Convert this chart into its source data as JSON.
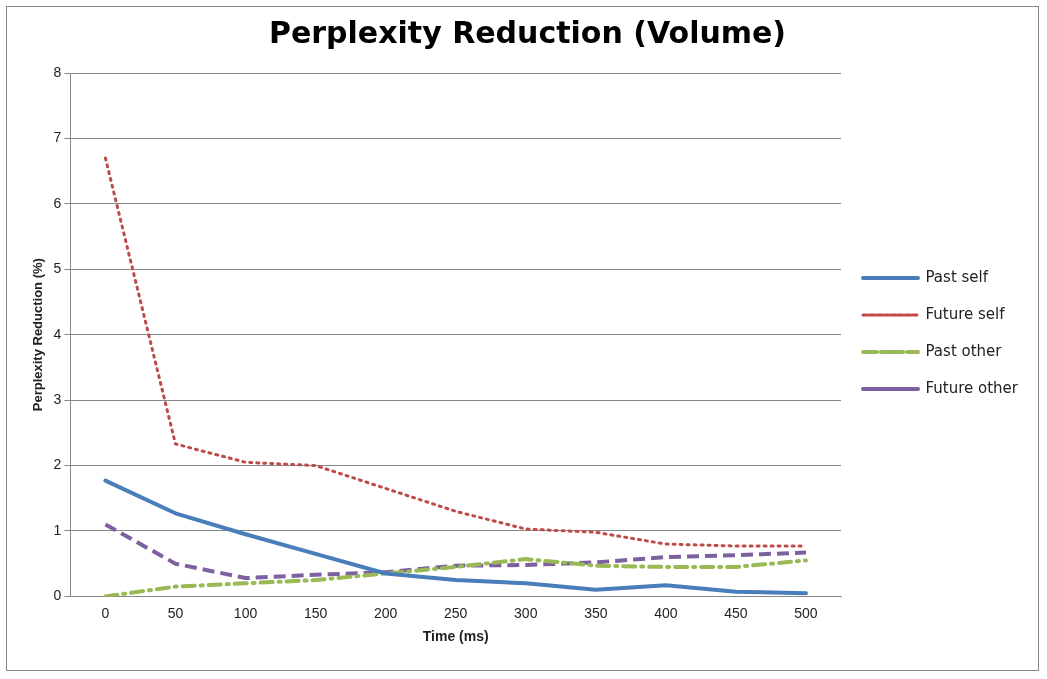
{
  "chart_data": {
    "type": "line",
    "title": "Perplexity Reduction (Volume)",
    "xlabel": "Time (ms)",
    "ylabel": "Perplexity Reduction (%)",
    "categories": [
      "0",
      "50",
      "100",
      "150",
      "200",
      "250",
      "300",
      "350",
      "400",
      "450",
      "500"
    ],
    "series": [
      {
        "name": "Past self",
        "color": "#4a7ebb",
        "line_style": "solid",
        "values": [
          1.77,
          1.27,
          0.95,
          0.65,
          0.35,
          0.25,
          0.2,
          0.1,
          0.17,
          0.07,
          0.05
        ]
      },
      {
        "name": "Future self",
        "color": "#be4b48",
        "line_style": "dotted",
        "values": [
          6.7,
          2.33,
          2.05,
          2.0,
          1.65,
          1.3,
          1.03,
          0.98,
          0.8,
          0.77,
          0.77
        ]
      },
      {
        "name": "Past other",
        "color": "#98b954",
        "line_style": "dashdot",
        "values": [
          0,
          0.15,
          0.2,
          0.25,
          0.35,
          0.45,
          0.57,
          0.47,
          0.45,
          0.45,
          0.55
        ]
      },
      {
        "name": "Future other",
        "color": "#7d60a0",
        "line_style": "dashed",
        "values": [
          1.1,
          0.5,
          0.28,
          0.33,
          0.37,
          0.47,
          0.48,
          0.52,
          0.6,
          0.63,
          0.67
        ]
      }
    ],
    "ylim": [
      0,
      8
    ],
    "yticks": [
      0,
      1,
      2,
      3,
      4,
      5,
      6,
      7,
      8
    ],
    "grid": "y",
    "legend": "right",
    "marker": "none"
  }
}
